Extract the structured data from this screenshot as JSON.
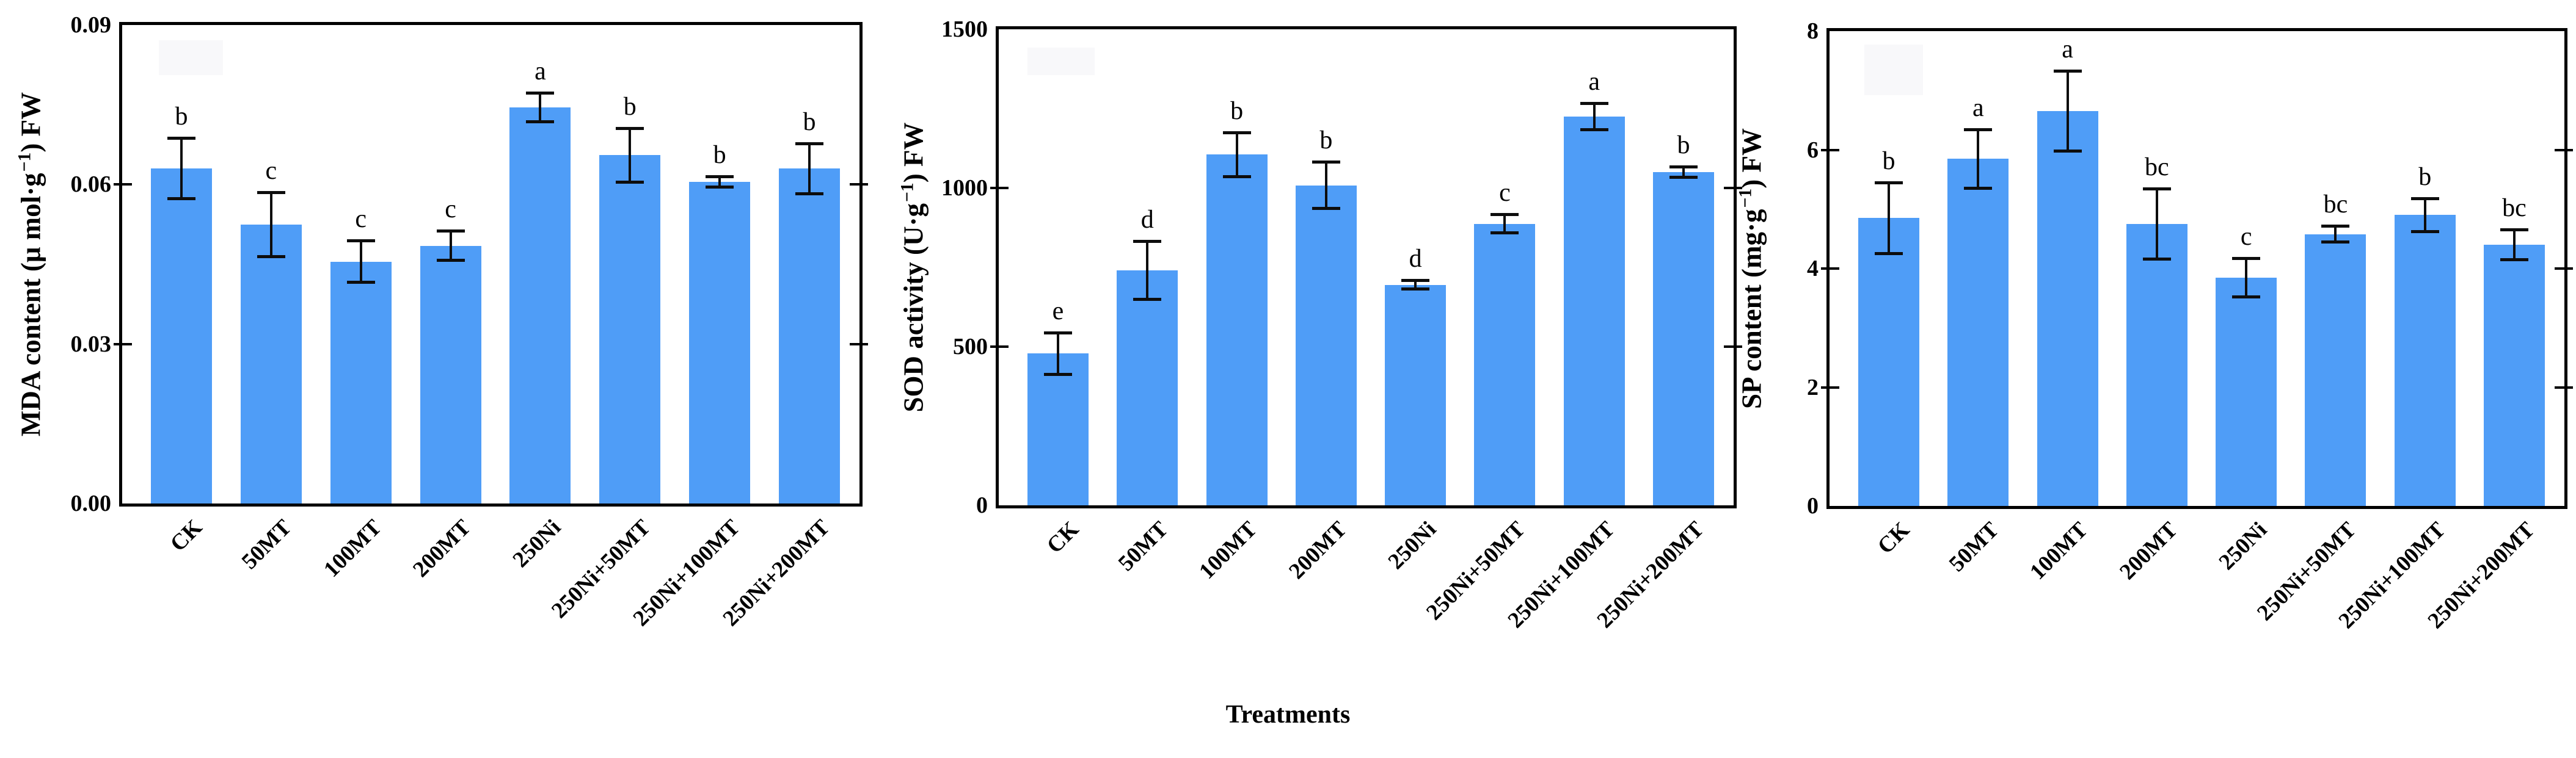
{
  "figure": {
    "xlabel": "Treatments",
    "bar_color": "#4f9df7",
    "axis_color": "#000000",
    "background_color": "#ffffff"
  },
  "chart_data": [
    {
      "type": "bar",
      "title": "",
      "ylabel": "MDA content (μ mol·g−1) FW",
      "ylabel_parts": {
        "pre": "MDA content (μ mol·g",
        "sup": "−1",
        "post": ") FW"
      },
      "xlabel": "Treatments",
      "categories": [
        "CK",
        "50MT",
        "100MT",
        "200MT",
        "250Ni",
        "250Ni+50MT",
        "250Ni+100MT",
        "250Ni+200MT"
      ],
      "values": [
        0.063,
        0.0525,
        0.0455,
        0.0485,
        0.0745,
        0.0655,
        0.0605,
        0.063
      ],
      "errors": [
        0.006,
        0.0063,
        0.0042,
        0.003,
        0.003,
        0.0053,
        0.0013,
        0.005
      ],
      "sig_letters": [
        "b",
        "c",
        "c",
        "c",
        "a",
        "b",
        "b",
        "b"
      ],
      "ylim": [
        0,
        0.09
      ],
      "yticks": [
        0,
        0.03,
        0.06,
        0.09
      ],
      "ytick_labels": [
        "0.00",
        "0.03",
        "0.06",
        "0.09"
      ],
      "grid": false,
      "legend": "none",
      "bar_color": "#4f9df7"
    },
    {
      "type": "bar",
      "title": "",
      "ylabel": "SOD activity (U·g−1) FW",
      "ylabel_parts": {
        "pre": "SOD activity (U·g",
        "sup": "−1",
        "post": ") FW"
      },
      "xlabel": "Treatments",
      "categories": [
        "CK",
        "50MT",
        "100MT",
        "200MT",
        "250Ni",
        "250Ni+50MT",
        "250Ni+100MT",
        "250Ni+200MT"
      ],
      "values": [
        478,
        740,
        1105,
        1008,
        695,
        887,
        1225,
        1050
      ],
      "errors": [
        70,
        96,
        74,
        78,
        19,
        34,
        46,
        22
      ],
      "sig_letters": [
        "e",
        "d",
        "b",
        "b",
        "d",
        "c",
        "a",
        "b"
      ],
      "ylim": [
        0,
        1500
      ],
      "yticks": [
        0,
        500,
        1000,
        1500
      ],
      "ytick_labels": [
        "0",
        "500",
        "1000",
        "1500"
      ],
      "grid": false,
      "legend": "none",
      "bar_color": "#4f9df7"
    },
    {
      "type": "bar",
      "title": "",
      "ylabel": "SP content (mg·g−1) FW",
      "ylabel_parts": {
        "pre": "SP content (mg·g",
        "sup": "−1",
        "post": ") FW"
      },
      "xlabel": "Treatments",
      "categories": [
        "CK",
        "50MT",
        "100MT",
        "200MT",
        "250Ni",
        "250Ni+50MT",
        "250Ni+100MT",
        "250Ni+200MT"
      ],
      "values": [
        4.85,
        5.85,
        6.65,
        4.75,
        3.85,
        4.58,
        4.9,
        4.4
      ],
      "errors": [
        0.62,
        0.52,
        0.7,
        0.62,
        0.35,
        0.16,
        0.3,
        0.28
      ],
      "sig_letters": [
        "b",
        "a",
        "a",
        "bc",
        "c",
        "bc",
        "b",
        "bc"
      ],
      "ylim": [
        0,
        8
      ],
      "yticks": [
        0,
        2,
        4,
        6,
        8
      ],
      "ytick_labels": [
        "0",
        "2",
        "4",
        "6",
        "8"
      ],
      "grid": false,
      "legend": "none",
      "bar_color": "#4f9df7"
    }
  ]
}
